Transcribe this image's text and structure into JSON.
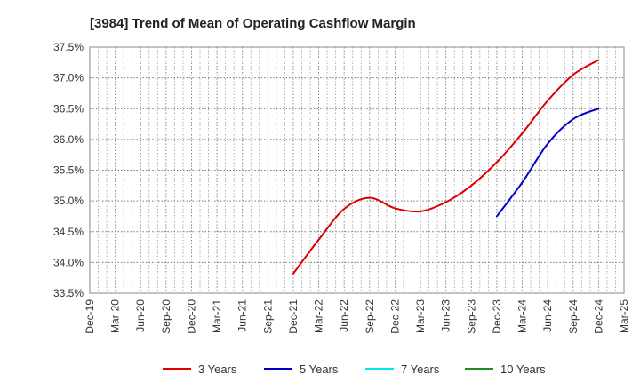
{
  "chart_data": {
    "type": "line",
    "title": "[3984]  Trend of Mean of Operating Cashflow Margin",
    "xlabel": "",
    "ylabel": "",
    "x_tick_labels": [
      "Dec-19",
      "Mar-20",
      "Jun-20",
      "Sep-20",
      "Dec-20",
      "Mar-21",
      "Jun-21",
      "Sep-21",
      "Dec-21",
      "Mar-22",
      "Jun-22",
      "Sep-22",
      "Dec-22",
      "Mar-23",
      "Jun-23",
      "Sep-23",
      "Dec-23",
      "Mar-24",
      "Jun-24",
      "Sep-24",
      "Dec-24",
      "Mar-25"
    ],
    "y_tick_labels": [
      "33.5%",
      "34.0%",
      "34.5%",
      "35.0%",
      "35.5%",
      "36.0%",
      "36.5%",
      "37.0%",
      "37.5%"
    ],
    "ylim": [
      33.5,
      37.5
    ],
    "y_unit": "%",
    "grid": true,
    "legend_position": "bottom",
    "series": [
      {
        "name": "3 Years",
        "color": "#dd0000",
        "x": [
          "Dec-21",
          "Mar-22",
          "Jun-22",
          "Sep-22",
          "Dec-22",
          "Mar-23",
          "Jun-23",
          "Sep-23",
          "Dec-23",
          "Mar-24",
          "Jun-24",
          "Sep-24",
          "Dec-24"
        ],
        "values": [
          33.82,
          34.37,
          34.87,
          35.05,
          34.88,
          34.83,
          34.98,
          35.25,
          35.63,
          36.1,
          36.63,
          37.05,
          37.29
        ]
      },
      {
        "name": "5 Years",
        "color": "#0000cc",
        "x": [
          "Dec-23",
          "Mar-24",
          "Jun-24",
          "Sep-24",
          "Dec-24"
        ],
        "values": [
          34.75,
          35.3,
          35.93,
          36.33,
          36.5
        ]
      },
      {
        "name": "7 Years",
        "color": "#00e5ee",
        "x": [],
        "values": []
      },
      {
        "name": "10 Years",
        "color": "#228b22",
        "x": [],
        "values": []
      }
    ]
  }
}
